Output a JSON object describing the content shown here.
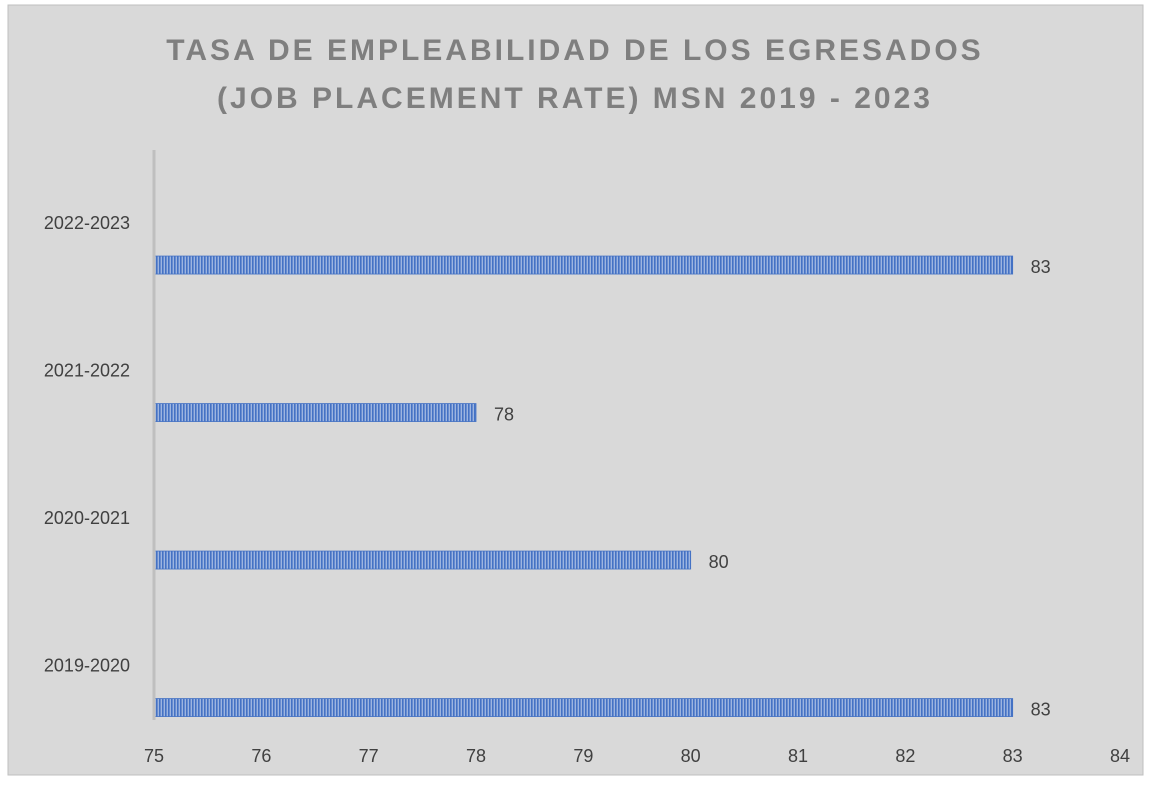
{
  "chart_data": {
    "type": "barh",
    "title": [
      "TASA DE EMPLEABILIDAD DE LOS EGRESADOS",
      "(JOB PLACEMENT RATE) MSN 2019 - 2023"
    ],
    "categories": [
      "2019-2020",
      "2020-2021",
      "2021-2022",
      "2022-2023"
    ],
    "values": [
      83,
      80,
      78,
      83
    ],
    "color": "#4472c4",
    "xlim": [
      75,
      84
    ],
    "xticks": [
      75,
      76,
      77,
      78,
      79,
      80,
      81,
      82,
      83,
      84
    ],
    "grid": false
  }
}
